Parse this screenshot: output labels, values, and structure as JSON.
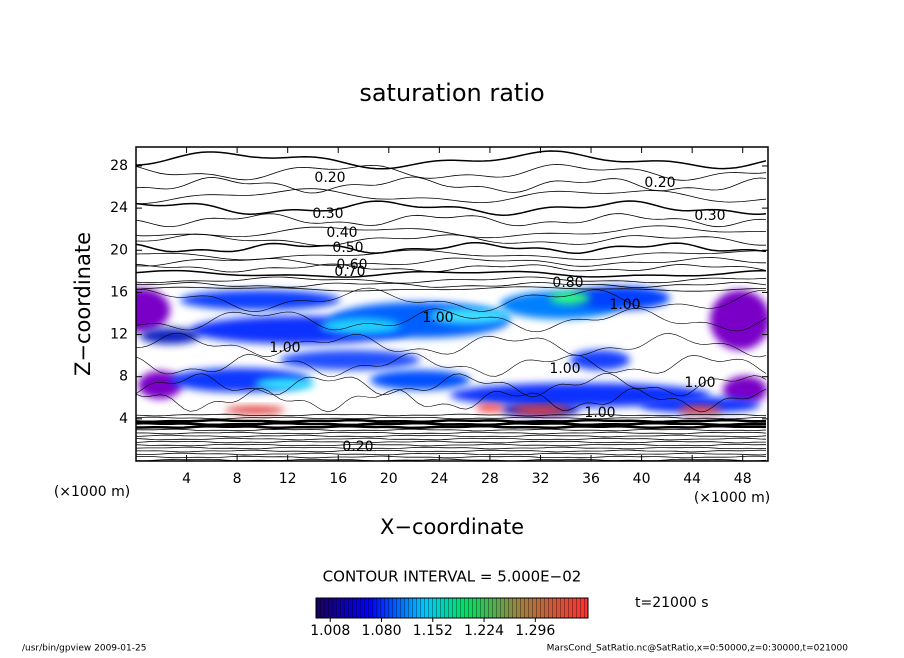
{
  "chart_data": {
    "type": "contour",
    "title": "saturation ratio",
    "x_label": "X−coordinate",
    "y_label": "Z−coordinate",
    "x_unit": "(×1000 m)",
    "y_unit": "(×1000 m)",
    "xlim": [
      0,
      50
    ],
    "ylim": [
      0,
      29.8
    ],
    "xticks": [
      4,
      8,
      12,
      16,
      20,
      24,
      28,
      32,
      36,
      40,
      44,
      48
    ],
    "yticks": [
      4,
      8,
      12,
      16,
      20,
      24,
      28
    ],
    "contour_labels": [
      "0.20",
      "0.20",
      "0.30",
      "0.30",
      "0.40",
      "0.50",
      "0.60",
      "0.70",
      "0.80",
      "1.00",
      "1.00",
      "1.00",
      "1.00",
      "1.00",
      "1.00",
      "0.20"
    ],
    "contour_interval": "CONTOUR INTERVAL = 5.000E−02",
    "colorbar": {
      "clim": [
        0.988,
        1.37
      ],
      "ticks": [
        {
          "value": 1.008,
          "label": "1.008"
        },
        {
          "value": 1.08,
          "label": "1.080"
        },
        {
          "value": 1.152,
          "label": "1.152"
        },
        {
          "value": 1.224,
          "label": "1.224"
        },
        {
          "value": 1.296,
          "label": "1.296"
        }
      ]
    },
    "time_label": "t=21000 s",
    "footer_left": "/usr/bin/gpview  2009-01-25",
    "footer_right": "MarsCond_SatRatio.nc@SatRatio,x=0:50000,z=0:30000,t=021000"
  }
}
